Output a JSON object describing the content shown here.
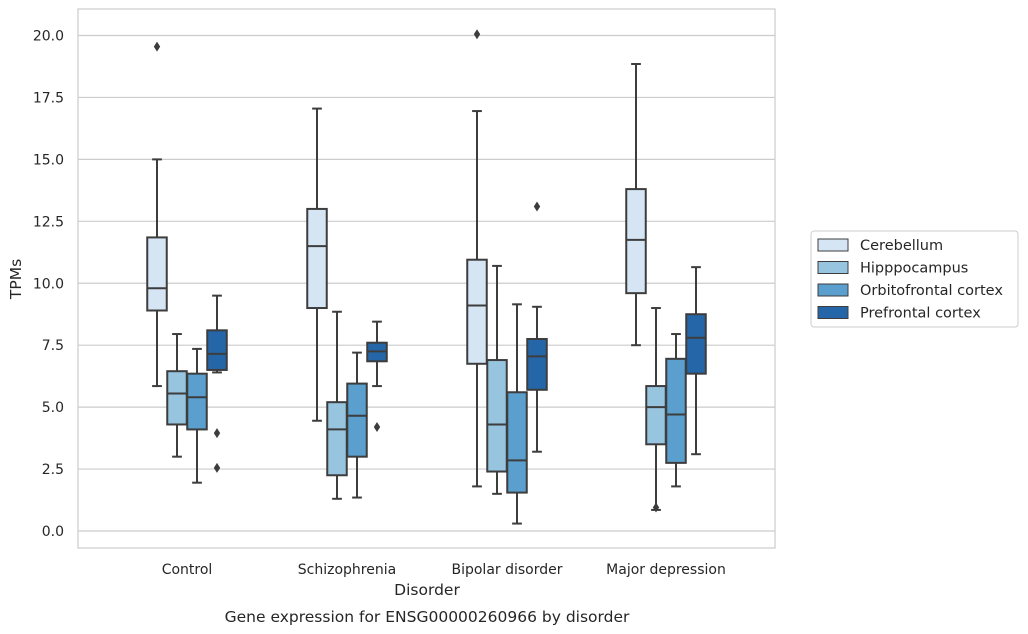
{
  "chart_data": {
    "type": "box",
    "title": "Gene expression for ENSG00000260966 by disorder",
    "xlabel": "Disorder",
    "ylabel": "TPMs",
    "ylim": [
      -0.6,
      21.1
    ],
    "yticks": [
      "0.0",
      "2.5",
      "5.0",
      "7.5",
      "10.0",
      "12.5",
      "15.0",
      "17.5",
      "20.0"
    ],
    "grid": true,
    "legend_position": "right",
    "categories": [
      "Control",
      "Schizophrenia",
      "Bipolar disorder",
      "Major depression"
    ],
    "series": [
      {
        "name": "Cerebellum",
        "color": "#d6e5f4",
        "boxes": [
          {
            "whislo": 5.85,
            "q1": 8.9,
            "med": 9.8,
            "q3": 11.85,
            "whishi": 15.0,
            "fliers": [
              19.55
            ]
          },
          {
            "whislo": 4.45,
            "q1": 9.0,
            "med": 11.5,
            "q3": 13.0,
            "whishi": 17.05,
            "fliers": []
          },
          {
            "whislo": 1.8,
            "q1": 6.75,
            "med": 9.1,
            "q3": 10.95,
            "whishi": 16.95,
            "fliers": [
              20.05
            ]
          },
          {
            "whislo": 7.5,
            "q1": 9.6,
            "med": 11.75,
            "q3": 13.8,
            "whishi": 18.85,
            "fliers": []
          }
        ]
      },
      {
        "name": "Hipppocampus",
        "color": "#97c4de",
        "boxes": [
          {
            "whislo": 3.0,
            "q1": 4.3,
            "med": 5.55,
            "q3": 6.45,
            "whishi": 7.95,
            "fliers": []
          },
          {
            "whislo": 1.3,
            "q1": 2.25,
            "med": 4.1,
            "q3": 5.2,
            "whishi": 8.85,
            "fliers": []
          },
          {
            "whislo": 1.5,
            "q1": 2.4,
            "med": 4.3,
            "q3": 6.9,
            "whishi": 10.7,
            "fliers": []
          },
          {
            "whislo": 0.85,
            "q1": 3.5,
            "med": 5.0,
            "q3": 5.85,
            "whishi": 9.0,
            "fliers": [
              0.95
            ]
          }
        ]
      },
      {
        "name": "Orbitofrontal cortex",
        "color": "#5a9fcd",
        "boxes": [
          {
            "whislo": 1.95,
            "q1": 4.1,
            "med": 5.4,
            "q3": 6.35,
            "whishi": 7.35,
            "fliers": []
          },
          {
            "whislo": 1.35,
            "q1": 3.0,
            "med": 4.65,
            "q3": 5.95,
            "whishi": 7.2,
            "fliers": []
          },
          {
            "whislo": 0.3,
            "q1": 1.55,
            "med": 2.85,
            "q3": 5.6,
            "whishi": 9.15,
            "fliers": []
          },
          {
            "whislo": 1.8,
            "q1": 2.75,
            "med": 4.7,
            "q3": 6.95,
            "whishi": 7.95,
            "fliers": []
          }
        ]
      },
      {
        "name": "Prefrontal cortex",
        "color": "#2566a8",
        "boxes": [
          {
            "whislo": 6.4,
            "q1": 6.5,
            "med": 7.15,
            "q3": 8.1,
            "whishi": 9.5,
            "fliers": [
              3.95,
              2.55
            ]
          },
          {
            "whislo": 5.85,
            "q1": 6.85,
            "med": 7.25,
            "q3": 7.6,
            "whishi": 8.45,
            "fliers": [
              4.2
            ]
          },
          {
            "whislo": 3.2,
            "q1": 5.7,
            "med": 7.05,
            "q3": 7.75,
            "whishi": 9.05,
            "fliers": [
              13.1
            ]
          },
          {
            "whislo": 3.1,
            "q1": 6.35,
            "med": 7.8,
            "q3": 8.75,
            "whishi": 10.65,
            "fliers": []
          }
        ]
      }
    ]
  }
}
